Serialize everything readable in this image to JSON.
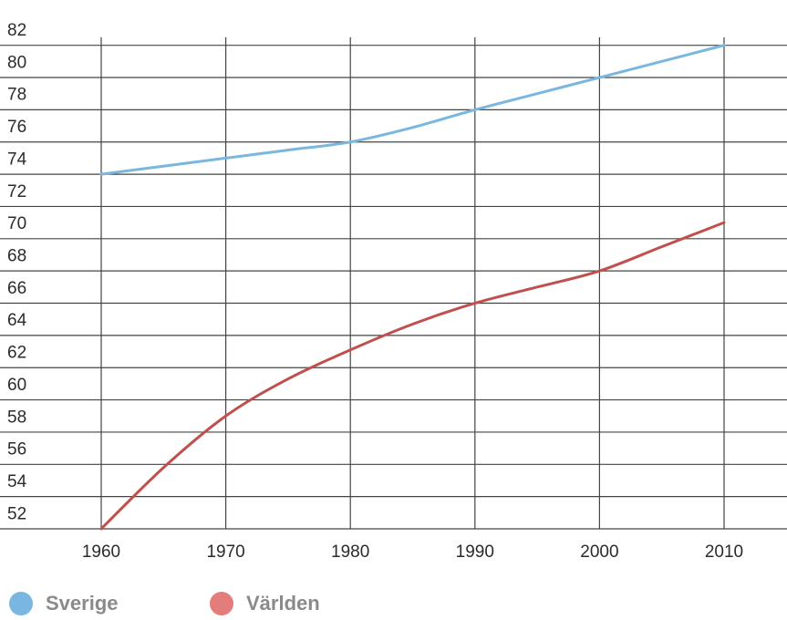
{
  "chart_data": {
    "type": "line",
    "x": [
      1960,
      1970,
      1980,
      1990,
      2000,
      2010
    ],
    "xticks": [
      "1960",
      "1970",
      "1980",
      "1990",
      "2000",
      "2010"
    ],
    "yticks": [
      "52",
      "54",
      "56",
      "58",
      "60",
      "62",
      "64",
      "66",
      "68",
      "70",
      "72",
      "74",
      "76",
      "78",
      "80",
      "82"
    ],
    "ylim": [
      51,
      82
    ],
    "grid": true,
    "legend": "bottom-left",
    "series": [
      {
        "name": "Sverige",
        "color": "#79b7e0",
        "points": [
          [
            1960,
            73
          ],
          [
            1965,
            73.5
          ],
          [
            1970,
            74
          ],
          [
            1975,
            74.5
          ],
          [
            1980,
            75
          ],
          [
            1985,
            75.9
          ],
          [
            1990,
            77
          ],
          [
            1995,
            78
          ],
          [
            2000,
            79
          ],
          [
            2005,
            80
          ],
          [
            2010,
            81
          ]
        ]
      },
      {
        "name": "Världen",
        "color": "#c0504d",
        "points": [
          [
            1960,
            51
          ],
          [
            1965,
            54.8
          ],
          [
            1970,
            58
          ],
          [
            1975,
            60.3
          ],
          [
            1980,
            62.1
          ],
          [
            1985,
            63.7
          ],
          [
            1990,
            65
          ],
          [
            1995,
            66
          ],
          [
            2000,
            67
          ],
          [
            2005,
            68.5
          ],
          [
            2010,
            70
          ]
        ]
      }
    ]
  },
  "legend_items": [
    {
      "label": "Sverige",
      "color": "#79b7e0"
    },
    {
      "label": "Världen",
      "color": "#e27d7b"
    }
  ]
}
